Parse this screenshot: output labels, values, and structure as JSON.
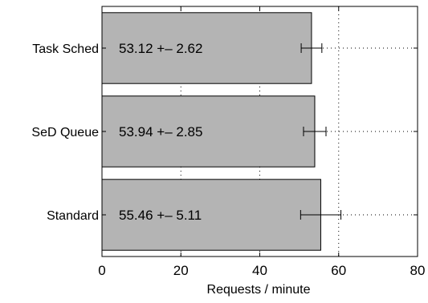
{
  "chart_data": {
    "type": "bar",
    "orientation": "horizontal",
    "categories": [
      "Task Sched",
      "SeD Queue",
      "Standard"
    ],
    "values": [
      53.12,
      53.94,
      55.46
    ],
    "errors": [
      2.62,
      2.85,
      5.11
    ],
    "bar_labels": [
      "53.12 +– 2.62",
      "53.94 +– 2.85",
      "55.46 +– 5.11"
    ],
    "xlabel": "Requests / minute",
    "xlim": [
      0,
      80
    ],
    "xticks": [
      0,
      20,
      40,
      60,
      80
    ],
    "grid": true,
    "grid_style": "dotted",
    "colors": {
      "bar_fill": "#b4b4b4",
      "bar_stroke": "#000000",
      "error_bar": "#000000",
      "grid": "#000000"
    }
  }
}
